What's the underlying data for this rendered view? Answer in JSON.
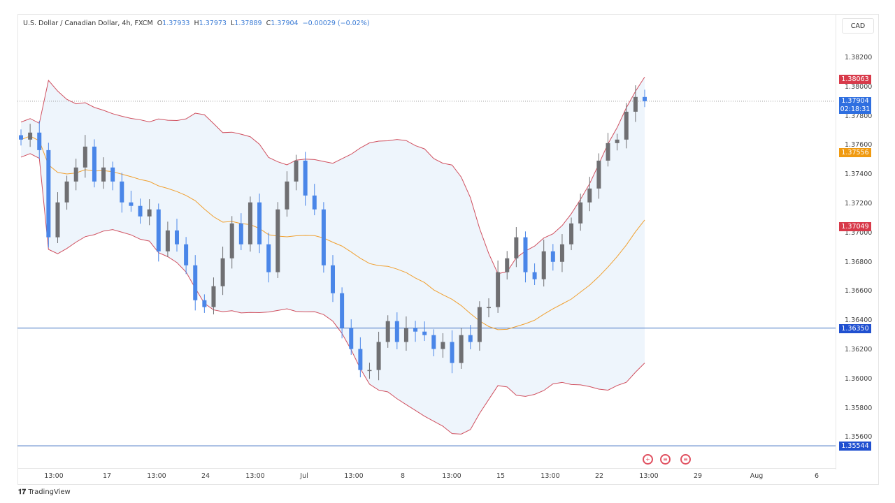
{
  "header": {
    "symbol": "U.S. Dollar / Canadian Dollar, 4h, FXCM",
    "open_label": "O",
    "open": "1.37933",
    "high_label": "H",
    "high": "1.37973",
    "low_label": "L",
    "low": "1.37889",
    "close_label": "C",
    "close": "1.37904",
    "change": "−0.00029 (−0.02%)"
  },
  "currency_button": "CAD",
  "price_axis": {
    "ticks": [
      "1.38200",
      "1.38000",
      "1.37800",
      "1.37600",
      "1.37400",
      "1.37200",
      "1.37000",
      "1.36800",
      "1.36600",
      "1.36400",
      "1.36200",
      "1.36000",
      "1.35800",
      "1.35600"
    ]
  },
  "tags": {
    "upper_band": "1.38063",
    "last_price": "1.37904",
    "countdown": "02:18:31",
    "basis": "1.37556",
    "lower_band": "1.37049",
    "level1": "1.36350",
    "level2": "1.35544"
  },
  "time_axis": [
    "13:00",
    "17",
    "13:00",
    "24",
    "13:00",
    "Jul",
    "13:00",
    "8",
    "13:00",
    "15",
    "13:00",
    "22",
    "13:00",
    "29",
    "Aug",
    "6"
  ],
  "events": [
    {
      "icon": "canada-flag-icon",
      "glyph": "+"
    },
    {
      "icon": "us-flag-icon",
      "glyph": "≡"
    },
    {
      "icon": "us-flag-icon",
      "glyph": "≡"
    }
  ],
  "branding": "TradingView",
  "colors": {
    "up": "#6f6f72",
    "down": "#4a86e8",
    "band": "#d0505f",
    "basis": "#f0a030",
    "fill": "#eef5fc",
    "level": "#3e6fc0"
  },
  "chart_data": {
    "type": "candlestick",
    "title": "U.S. Dollar / Canadian Dollar, 4h, FXCM",
    "ylim": [
      1.3545,
      1.3835
    ],
    "indicator": "Bollinger Bands (20, 2)",
    "horizontal_levels": [
      1.3635,
      1.35544
    ],
    "closes": [
      1.37641,
      1.37689,
      1.37569,
      1.36972,
      1.37211,
      1.37354,
      1.3745,
      1.37593,
      1.37354,
      1.3745,
      1.37354,
      1.37211,
      1.37187,
      1.37115,
      1.37163,
      1.36876,
      1.37019,
      1.36924,
      1.3678,
      1.36541,
      1.36494,
      1.36637,
      1.36828,
      1.37067,
      1.36924,
      1.37211,
      1.36924,
      1.36733,
      1.37163,
      1.37354,
      1.37497,
      1.37258,
      1.37163,
      1.3678,
      1.36589,
      1.3635,
      1.36207,
      1.36063,
      1.36063,
      1.36255,
      1.36398,
      1.36255,
      1.3635,
      1.36326,
      1.36302,
      1.36207,
      1.36255,
      1.36111,
      1.36302,
      1.36255,
      1.36494,
      1.36494,
      1.36733,
      1.36828,
      1.36972,
      1.36733,
      1.36685,
      1.36876,
      1.36804,
      1.36924,
      1.37067,
      1.37211,
      1.37306,
      1.37497,
      1.37617,
      1.37641,
      1.37832,
      1.37933,
      1.37904
    ]
  }
}
